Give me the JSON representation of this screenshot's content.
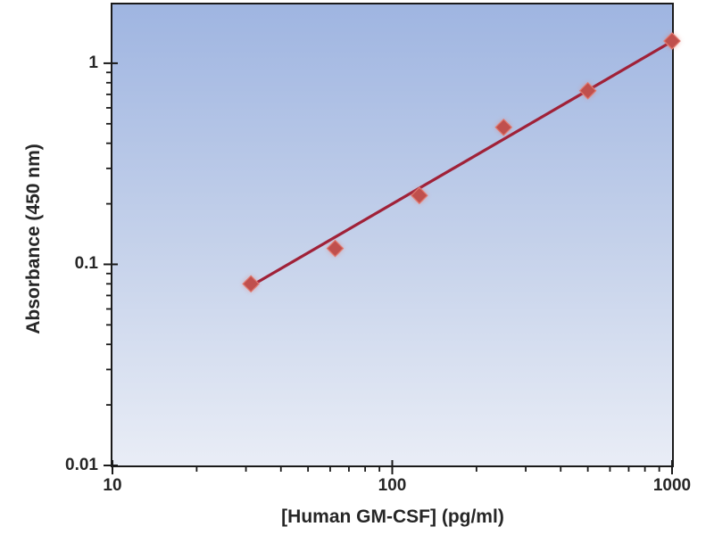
{
  "chart_data": {
    "type": "scatter",
    "title": "",
    "xlabel": "[Human GM-CSF] (pg/ml)",
    "ylabel": "Absorbance (450 nm)",
    "x_scale": "log",
    "y_scale": "log",
    "xlim": [
      10,
      1000
    ],
    "ylim": [
      0.01,
      1.96
    ],
    "grid": false,
    "legend": false,
    "x_ticks": [
      {
        "value": 10,
        "label": "10"
      },
      {
        "value": 100,
        "label": "100"
      },
      {
        "value": 1000,
        "label": "1000"
      }
    ],
    "y_ticks": [
      {
        "value": 1,
        "label": "1"
      },
      {
        "value": 0.1,
        "label": "0.1"
      },
      {
        "value": 0.01,
        "label": "0.01"
      }
    ],
    "minor_ticks": "log-decade-2-to-9",
    "series": [
      {
        "name": "standard-curve-points",
        "marker": "diamond",
        "points": [
          {
            "x": 31.25,
            "y": 0.08
          },
          {
            "x": 62.5,
            "y": 0.12
          },
          {
            "x": 125,
            "y": 0.22
          },
          {
            "x": 250,
            "y": 0.48
          },
          {
            "x": 500,
            "y": 0.73
          },
          {
            "x": 1000,
            "y": 1.29
          }
        ]
      }
    ],
    "trendline": {
      "x": [
        31.25,
        1000
      ],
      "y": [
        0.078,
        1.285
      ]
    },
    "colors": {
      "plot_bg_top": "#9FB5E1",
      "plot_bg_mid": "#C7D3EB",
      "plot_bg_bottom": "#E9EDF6",
      "axis": "#1A1A1A",
      "text": "#262626",
      "trendline": "#A02138",
      "marker_fill": "#C0504D",
      "marker_halo": "#E0786E"
    }
  }
}
